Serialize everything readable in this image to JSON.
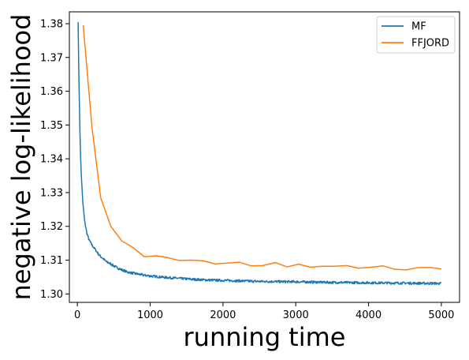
{
  "chart_data": {
    "type": "line",
    "xlabel": "running time",
    "ylabel": "negative log-likelihood",
    "xlim": [
      -110,
      5250
    ],
    "ylim": [
      1.2975,
      1.3835
    ],
    "x_ticks": [
      0,
      1000,
      2000,
      3000,
      4000,
      5000
    ],
    "y_ticks": [
      1.3,
      1.31,
      1.32,
      1.33,
      1.34,
      1.35,
      1.36,
      1.37,
      1.38
    ],
    "legend_position": "top-right",
    "grid": false,
    "series": [
      {
        "name": "MF",
        "color": "#1f77b4",
        "noisy": true,
        "x": [
          10,
          20,
          35,
          50,
          75,
          100,
          130,
          160,
          200,
          250,
          300,
          350,
          400,
          450,
          500,
          600,
          700,
          800,
          900,
          1000,
          1200,
          1400,
          1600,
          1800,
          2000,
          2500,
          3000,
          3500,
          4000,
          4500,
          5000
        ],
        "y": [
          1.3805,
          1.365,
          1.348,
          1.337,
          1.327,
          1.3215,
          1.318,
          1.316,
          1.3145,
          1.313,
          1.3115,
          1.3105,
          1.3095,
          1.309,
          1.3083,
          1.3072,
          1.3064,
          1.306,
          1.3056,
          1.3053,
          1.3049,
          1.3046,
          1.3043,
          1.3041,
          1.304,
          1.3037,
          1.3036,
          1.3034,
          1.3033,
          1.3032,
          1.3031
        ]
      },
      {
        "name": "FFJORD",
        "color": "#ff7f0e",
        "noisy": false,
        "x": [
          80,
          200,
          320,
          460,
          610,
          760,
          920,
          1080,
          1230,
          1400,
          1570,
          1730,
          1890,
          2040,
          2220,
          2390,
          2550,
          2720,
          2880,
          3040,
          3200,
          3360,
          3530,
          3700,
          3860,
          4030,
          4200,
          4360,
          4520,
          4680,
          4850,
          5000
        ],
        "y": [
          1.3795,
          1.3495,
          1.3285,
          1.32,
          1.3157,
          1.3138,
          1.311,
          1.3113,
          1.3108,
          1.3099,
          1.31,
          1.3098,
          1.3089,
          1.3091,
          1.3094,
          1.3083,
          1.3084,
          1.3093,
          1.308,
          1.3088,
          1.3079,
          1.3082,
          1.3082,
          1.3084,
          1.3076,
          1.3079,
          1.3083,
          1.3073,
          1.3071,
          1.3078,
          1.3078,
          1.3074
        ]
      }
    ]
  }
}
